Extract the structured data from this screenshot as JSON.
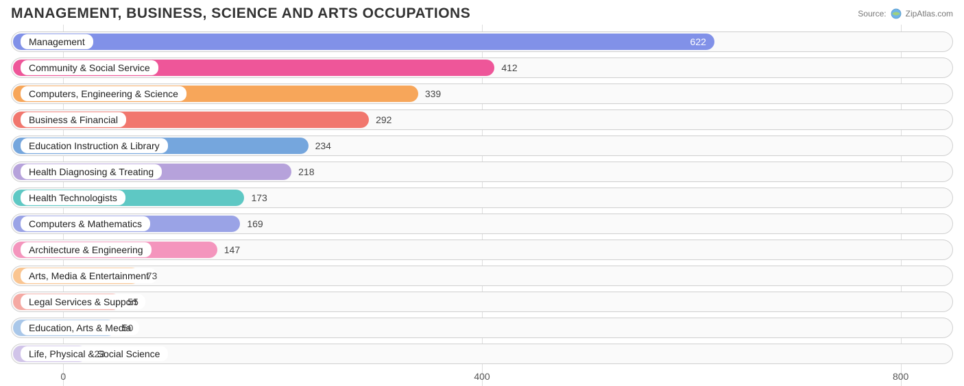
{
  "title": "MANAGEMENT, BUSINESS, SCIENCE AND ARTS OCCUPATIONS",
  "source": {
    "prefix": "Source:",
    "name": "ZipAtlas.com"
  },
  "chart": {
    "type": "bar-horizontal",
    "xmin": -50,
    "xmax": 850,
    "ticks": [
      0,
      400,
      800
    ],
    "track_border": "#cfcfcf",
    "track_bg": "#fafafa",
    "grid_color": "#dddddd",
    "label_pill_bg": "#ffffff",
    "value_color": "#444444",
    "bars": [
      {
        "label": "Management",
        "value": 622,
        "color": "#8191e8",
        "value_inside": true
      },
      {
        "label": "Community & Social Service",
        "value": 412,
        "color": "#ee5699"
      },
      {
        "label": "Computers, Engineering & Science",
        "value": 339,
        "color": "#f7a65a"
      },
      {
        "label": "Business & Financial",
        "value": 292,
        "color": "#f1776e"
      },
      {
        "label": "Education Instruction & Library",
        "value": 234,
        "color": "#75a6dd"
      },
      {
        "label": "Health Diagnosing & Treating",
        "value": 218,
        "color": "#b6a2db"
      },
      {
        "label": "Health Technologists",
        "value": 173,
        "color": "#5ec8c4"
      },
      {
        "label": "Computers & Mathematics",
        "value": 169,
        "color": "#9aa3e6"
      },
      {
        "label": "Architecture & Engineering",
        "value": 147,
        "color": "#f495bd"
      },
      {
        "label": "Arts, Media & Entertainment",
        "value": 73,
        "color": "#fac591"
      },
      {
        "label": "Legal Services & Support",
        "value": 55,
        "color": "#f5a9a3"
      },
      {
        "label": "Education, Arts & Media",
        "value": 50,
        "color": "#a9c7e9"
      },
      {
        "label": "Life, Physical & Social Science",
        "value": 23,
        "color": "#d1c4e9"
      }
    ]
  }
}
